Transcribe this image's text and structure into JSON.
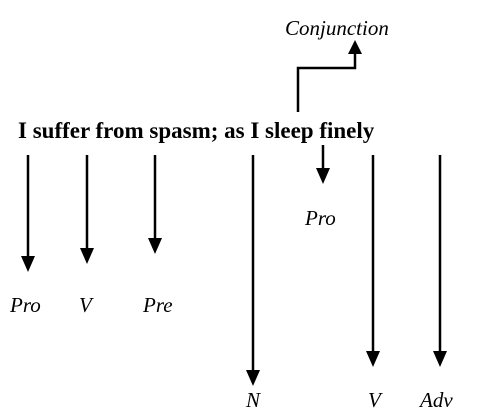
{
  "sentence": "I suffer from spasm; as I sleep finely",
  "conjunction": "Conjunction",
  "tags": [
    "Pro",
    "V",
    "Pre",
    "N",
    "Pro",
    "V",
    "Adv"
  ]
}
